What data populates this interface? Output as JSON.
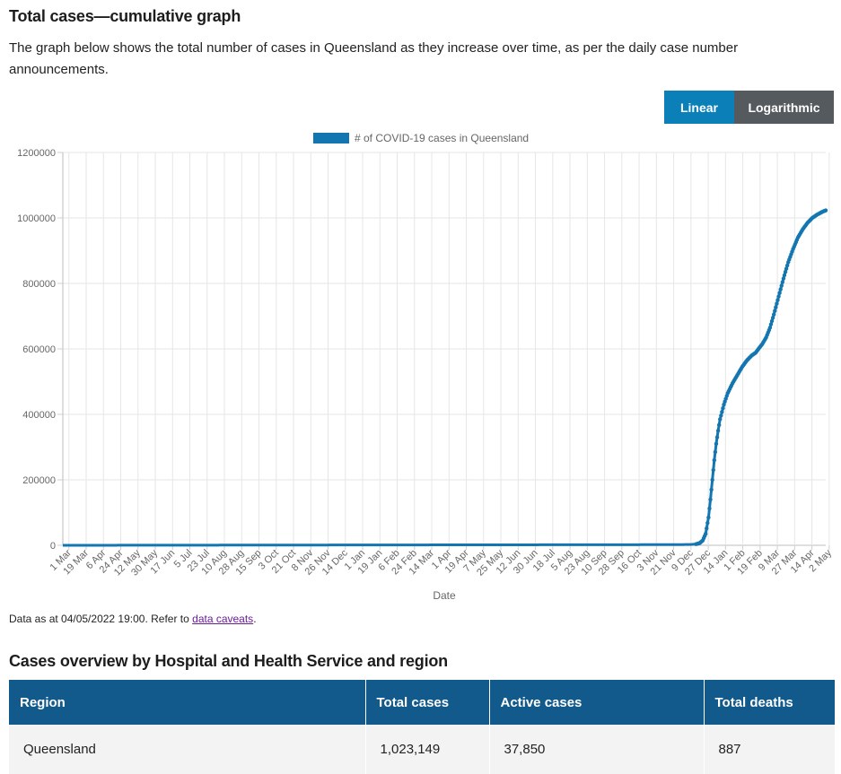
{
  "heading": "Total cases—cumulative graph",
  "intro": "The graph below shows the total number of cases in Queensland as they increase over time, as per the daily case number announcements.",
  "toggle": {
    "linear_label": "Linear",
    "log_label": "Logarithmic"
  },
  "colors": {
    "accent": "#0b7fb8",
    "toggle_inactive": "#555a5e",
    "table_header": "#135a8c",
    "series": "#1376b0"
  },
  "caption": {
    "prefix": "Data as at 04/05/2022 19:00. Refer to ",
    "link_text": "data caveats",
    "suffix": "."
  },
  "table": {
    "title": "Cases overview by Hospital and Health Service and region",
    "headers": [
      "Region",
      "Total cases",
      "Active cases",
      "Total deaths"
    ],
    "rows": [
      {
        "region": "Queensland",
        "total_cases": "1,023,149",
        "active_cases": "37,850",
        "total_deaths": "887"
      }
    ]
  },
  "chart_data": {
    "type": "line",
    "title": "",
    "legend": "# of COVID-19 cases in Queensland",
    "xlabel": "Date",
    "ylabel": "",
    "ylim": [
      0,
      1200000
    ],
    "yticks": [
      "1200000",
      "1000000",
      "800000",
      "600000",
      "400000",
      "200000",
      "0"
    ],
    "grid": true,
    "x_start": "2020-03-01",
    "x_end": "2022-05-04",
    "x_ticks": [
      "1 Mar",
      "19 Mar",
      "6 Apr",
      "24 Apr",
      "12 May",
      "30 May",
      "17 Jun",
      "5 Jul",
      "23 Jul",
      "10 Aug",
      "28 Aug",
      "15 Sep",
      "3 Oct",
      "21 Oct",
      "8 Nov",
      "26 Nov",
      "14 Dec",
      "1 Jan",
      "19 Jan",
      "6 Feb",
      "24 Feb",
      "14 Mar",
      "1 Apr",
      "19 Apr",
      "7 May",
      "25 May",
      "12 Jun",
      "30 Jun",
      "18 Jul",
      "5 Aug",
      "23 Aug",
      "10 Sep",
      "28 Sep",
      "16 Oct",
      "3 Nov",
      "21 Nov",
      "9 Dec",
      "27 Dec",
      "14 Jan",
      "1 Feb",
      "19 Feb",
      "9 Mar",
      "27 Mar",
      "14 Apr",
      "2 May"
    ],
    "series": [
      {
        "name": "# of COVID-19 cases in Queensland",
        "points": [
          [
            "2020-03-01",
            0
          ],
          [
            "2021-12-01",
            2000
          ],
          [
            "2021-12-14",
            2500
          ],
          [
            "2021-12-20",
            3500
          ],
          [
            "2021-12-24",
            7000
          ],
          [
            "2021-12-27",
            15000
          ],
          [
            "2021-12-30",
            35000
          ],
          [
            "2022-01-02",
            85000
          ],
          [
            "2022-01-04",
            140000
          ],
          [
            "2022-01-06",
            200000
          ],
          [
            "2022-01-08",
            260000
          ],
          [
            "2022-01-10",
            310000
          ],
          [
            "2022-01-12",
            350000
          ],
          [
            "2022-01-14",
            385000
          ],
          [
            "2022-01-18",
            430000
          ],
          [
            "2022-01-22",
            465000
          ],
          [
            "2022-01-27",
            495000
          ],
          [
            "2022-02-01",
            520000
          ],
          [
            "2022-02-06",
            545000
          ],
          [
            "2022-02-11",
            565000
          ],
          [
            "2022-02-16",
            580000
          ],
          [
            "2022-02-20",
            588000
          ],
          [
            "2022-02-23",
            600000
          ],
          [
            "2022-02-27",
            615000
          ],
          [
            "2022-03-03",
            635000
          ],
          [
            "2022-03-07",
            665000
          ],
          [
            "2022-03-11",
            705000
          ],
          [
            "2022-03-16",
            760000
          ],
          [
            "2022-03-21",
            815000
          ],
          [
            "2022-03-26",
            865000
          ],
          [
            "2022-03-31",
            905000
          ],
          [
            "2022-04-05",
            940000
          ],
          [
            "2022-04-10",
            965000
          ],
          [
            "2022-04-15",
            985000
          ],
          [
            "2022-04-20",
            1000000
          ],
          [
            "2022-04-25",
            1010000
          ],
          [
            "2022-04-30",
            1018000
          ],
          [
            "2022-05-04",
            1023149
          ]
        ]
      }
    ]
  }
}
